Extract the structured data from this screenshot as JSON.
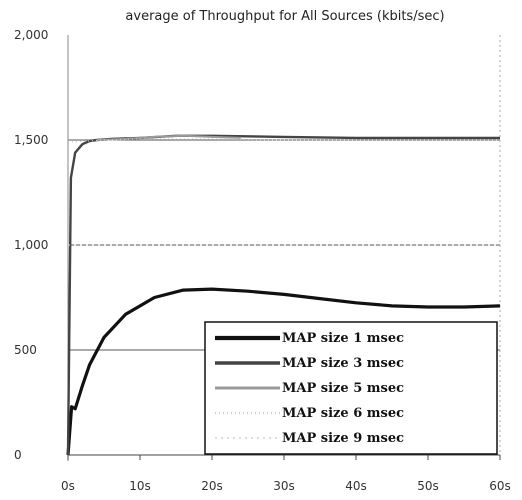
{
  "chart_data": {
    "type": "line",
    "title": "average of Throughput for All Sources (kbits/sec)",
    "xlabel": "",
    "ylabel": "",
    "xlim": [
      0,
      60
    ],
    "ylim": [
      0,
      2000
    ],
    "x_ticks": [
      {
        "value": 0,
        "label": "0s"
      },
      {
        "value": 10,
        "label": "10s"
      },
      {
        "value": 20,
        "label": "20s"
      },
      {
        "value": 30,
        "label": "30s"
      },
      {
        "value": 40,
        "label": "40s"
      },
      {
        "value": 50,
        "label": "50s"
      },
      {
        "value": 60,
        "label": "60s"
      }
    ],
    "y_ticks": [
      {
        "value": 0,
        "label": "0"
      },
      {
        "value": 500,
        "label": "500"
      },
      {
        "value": 1000,
        "label": "1,000"
      },
      {
        "value": 1500,
        "label": "1,500"
      },
      {
        "value": 2000,
        "label": "2,000"
      }
    ],
    "grid": {
      "horizontal": true,
      "vertical": false
    },
    "legend_position": "bottom-right",
    "series": [
      {
        "name": "MAP size 1 msec",
        "color": "#111111",
        "style": "solid-thick",
        "x": [
          0,
          0.5,
          1,
          2,
          3,
          5,
          8,
          12,
          16,
          20,
          25,
          30,
          35,
          40,
          45,
          50,
          55,
          60
        ],
        "y": [
          0,
          230,
          220,
          330,
          430,
          560,
          670,
          750,
          785,
          790,
          780,
          765,
          745,
          725,
          710,
          705,
          705,
          710
        ]
      },
      {
        "name": "MAP size 3 msec",
        "color": "#444444",
        "style": "solid",
        "x": [
          0,
          0.4,
          1,
          2,
          3,
          4,
          6,
          10,
          15,
          20,
          30,
          40,
          50,
          60
        ],
        "y": [
          0,
          1320,
          1440,
          1480,
          1495,
          1500,
          1505,
          1510,
          1520,
          1520,
          1515,
          1510,
          1510,
          1510
        ]
      },
      {
        "name": "MAP size 5 msec",
        "color": "#9a9a9a",
        "style": "double",
        "x": [
          4,
          8,
          12,
          16,
          20,
          24
        ],
        "y": [
          1500,
          1505,
          1515,
          1520,
          1515,
          1510
        ]
      },
      {
        "name": "MAP size 6 msec",
        "color": "#cccccc",
        "style": "dotted",
        "x": [
          0,
          5,
          10,
          20,
          30,
          40,
          50,
          60
        ],
        "y": [
          1490,
          1500,
          1505,
          1505,
          1500,
          1500,
          1500,
          1500
        ]
      },
      {
        "name": "MAP size 9 msec",
        "color": "#dddddd",
        "style": "faint",
        "x": [
          0,
          10,
          20,
          30,
          40,
          50,
          60
        ],
        "y": [
          1000,
          1000,
          1000,
          1000,
          1000,
          1000,
          1000
        ]
      }
    ]
  }
}
